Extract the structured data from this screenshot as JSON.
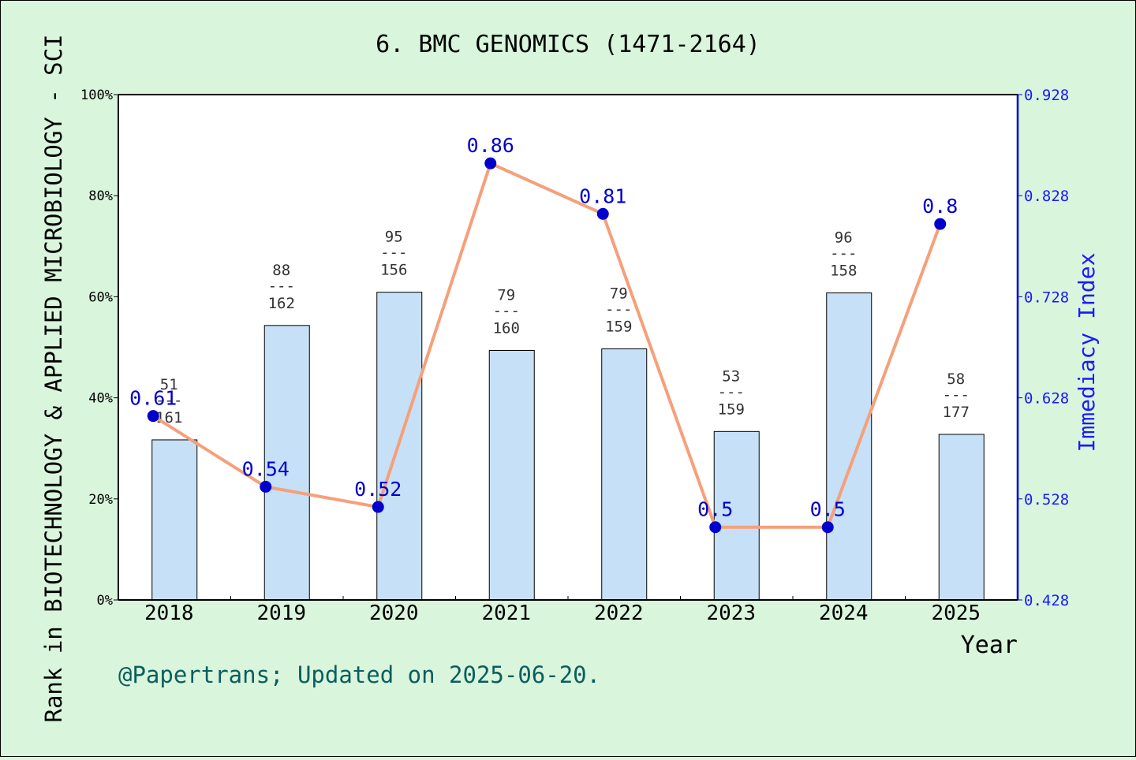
{
  "colors": {
    "background": "#d9f5dc",
    "bar_fill": "#c6e0f7",
    "line": "#f5a07a",
    "point": "#0000cc",
    "right_axis": "#1a1aff",
    "footer": "#0b5e5e"
  },
  "chart_data": {
    "type": "bar",
    "title": "6. BMC GENOMICS (1471-2164)",
    "xlabel": "Year",
    "ylabel_left": "Rank in BIOTECHNOLOGY & APPLIED MICROBIOLOGY - SCI",
    "ylabel_right": "Immediacy Index",
    "footer": "@Papertrans; Updated on 2025-06-20.",
    "categories": [
      "2018",
      "2019",
      "2020",
      "2021",
      "2022",
      "2023",
      "2024",
      "2025"
    ],
    "left_axis": {
      "ylim": [
        0,
        100
      ],
      "ticks": [
        0,
        20,
        40,
        60,
        80,
        100
      ],
      "tick_labels": [
        "0%",
        "20%",
        "40%",
        "60%",
        "80%",
        "100%"
      ]
    },
    "right_axis": {
      "ylim": [
        0.428,
        0.928
      ],
      "ticks": [
        0.428,
        0.528,
        0.628,
        0.728,
        0.828,
        0.928
      ],
      "tick_labels": [
        "0.428",
        "0.528",
        "0.628",
        "0.728",
        "0.828",
        "0.928"
      ]
    },
    "bars": {
      "rank": [
        51,
        88,
        95,
        79,
        79,
        53,
        96,
        58
      ],
      "total": [
        161,
        162,
        156,
        160,
        159,
        159,
        158,
        177
      ],
      "separator": "---"
    },
    "line": {
      "values": [
        0.61,
        0.54,
        0.52,
        0.86,
        0.81,
        0.5,
        0.5,
        0.8
      ],
      "labels": [
        "0.61",
        "0.54",
        "0.52",
        "0.86",
        "0.81",
        "0.5",
        "0.5",
        "0.8"
      ]
    },
    "grid": false
  }
}
